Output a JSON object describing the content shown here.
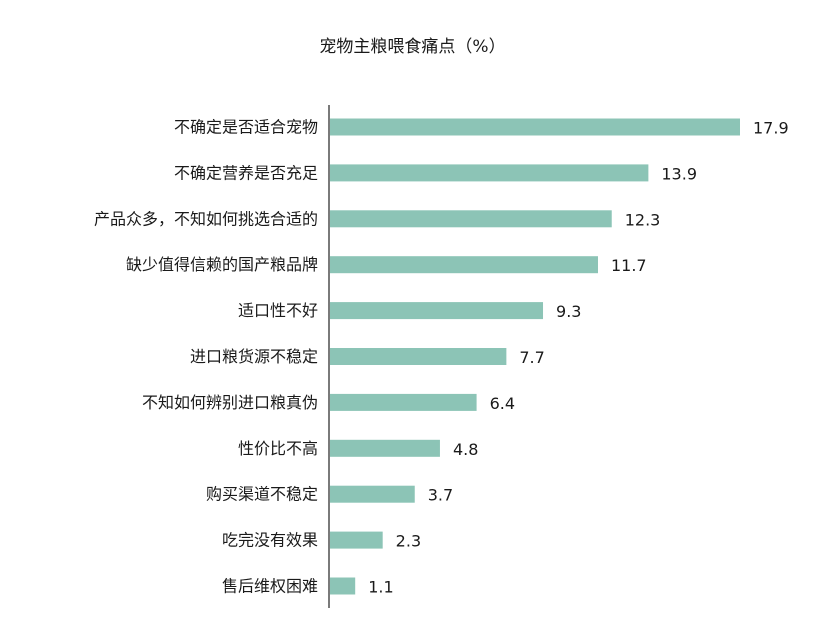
{
  "chart_data": {
    "type": "bar",
    "orientation": "horizontal",
    "title": "宠物主粮喂食痛点（%）",
    "categories": [
      "不确定是否适合宠物",
      "不确定营养是否充足",
      "产品众多，不知如何挑选合适的",
      "缺少值得信赖的国产粮品牌",
      "适口性不好",
      "进口粮货源不稳定",
      "不知如何辨别进口粮真伪",
      "性价比不高",
      "购买渠道不稳定",
      "吃完没有效果",
      "售后维权困难"
    ],
    "values": [
      17.9,
      13.9,
      12.3,
      11.7,
      9.3,
      7.7,
      6.4,
      4.8,
      3.7,
      2.3,
      1.1
    ],
    "value_labels": [
      "17.9",
      "13.9",
      "12.3",
      "11.7",
      "9.3",
      "7.7",
      "6.4",
      "4.8",
      "3.7",
      "2.3",
      "1.1"
    ],
    "xlim": [
      0,
      17.9
    ],
    "bar_color": "#8cc4b6",
    "axis_color": "#222222",
    "grid": false,
    "legend": "none"
  }
}
